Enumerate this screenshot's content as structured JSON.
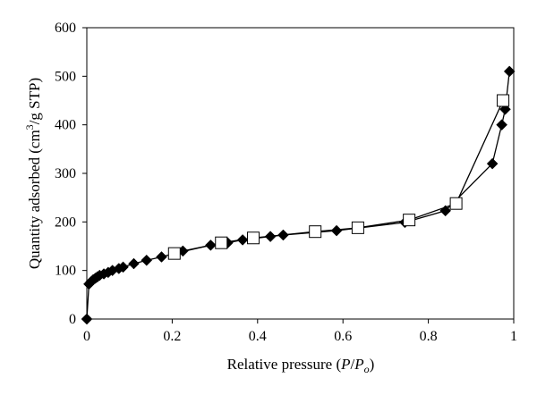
{
  "chart_data": {
    "type": "scatter",
    "xlabel": {
      "prefix": "Relative pressure (",
      "P1": "P",
      "slash": "/",
      "P2": "P",
      "sub": "o",
      "suffix": ")"
    },
    "ylabel": {
      "prefix": "Quantity adsorbed (cm",
      "sup": "3",
      "suffix": "/g STP)"
    },
    "xlim": [
      0,
      1
    ],
    "ylim": [
      0,
      600
    ],
    "xticks": [
      0,
      0.2,
      0.4,
      0.6,
      0.8,
      1
    ],
    "xtick_labels": [
      "0",
      "0.2",
      "0.4",
      "0.6",
      "0.8",
      "1"
    ],
    "yticks": [
      0,
      100,
      200,
      300,
      400,
      500,
      600
    ],
    "ytick_labels": [
      "0",
      "100",
      "200",
      "300",
      "400",
      "500",
      "600"
    ],
    "grid": false,
    "legend": "none",
    "series": [
      {
        "marker": "filled-diamond",
        "color": "#000000",
        "points": [
          [
            0.0,
            0
          ],
          [
            0.005,
            72
          ],
          [
            0.01,
            77
          ],
          [
            0.015,
            81
          ],
          [
            0.02,
            84
          ],
          [
            0.025,
            87
          ],
          [
            0.03,
            90
          ],
          [
            0.04,
            93
          ],
          [
            0.05,
            96
          ],
          [
            0.06,
            100
          ],
          [
            0.075,
            104
          ],
          [
            0.085,
            107
          ],
          [
            0.11,
            114
          ],
          [
            0.14,
            121
          ],
          [
            0.175,
            128
          ],
          [
            0.225,
            140
          ],
          [
            0.29,
            152
          ],
          [
            0.33,
            157
          ],
          [
            0.365,
            163
          ],
          [
            0.43,
            170
          ],
          [
            0.46,
            173
          ],
          [
            0.585,
            182
          ],
          [
            0.745,
            199
          ],
          [
            0.84,
            223
          ],
          [
            0.95,
            320
          ],
          [
            0.972,
            400
          ],
          [
            0.98,
            432
          ],
          [
            0.99,
            510
          ]
        ]
      },
      {
        "marker": "open-square",
        "color": "#000000",
        "points": [
          [
            0.205,
            135
          ],
          [
            0.315,
            157
          ],
          [
            0.39,
            167
          ],
          [
            0.535,
            180
          ],
          [
            0.635,
            188
          ],
          [
            0.755,
            204
          ],
          [
            0.865,
            238
          ],
          [
            0.975,
            450
          ]
        ]
      }
    ]
  }
}
